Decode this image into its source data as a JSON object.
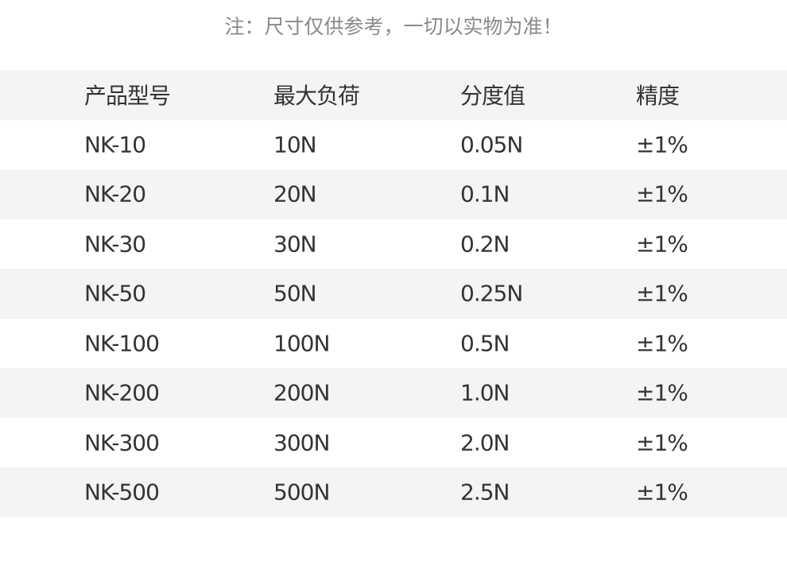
{
  "note": "注：尺寸仅供参考，一切以实物为准！",
  "table": {
    "headers": [
      "产品型号",
      "最大负荷",
      "分度值",
      "精度"
    ],
    "rows": [
      [
        "NK-10",
        "10N",
        "0.05N",
        "±1%"
      ],
      [
        "NK-20",
        "20N",
        "0.1N",
        "±1%"
      ],
      [
        "NK-30",
        "30N",
        "0.2N",
        "±1%"
      ],
      [
        "NK-50",
        "50N",
        "0.25N",
        "±1%"
      ],
      [
        "NK-100",
        "100N",
        "0.5N",
        "±1%"
      ],
      [
        "NK-200",
        "200N",
        "1.0N",
        "±1%"
      ],
      [
        "NK-300",
        "300N",
        "2.0N",
        "±1%"
      ],
      [
        "NK-500",
        "500N",
        "2.5N",
        "±1%"
      ]
    ]
  },
  "colors": {
    "stripe": "#f4f4f4",
    "text": "#333333",
    "note": "#8a8a8a"
  }
}
